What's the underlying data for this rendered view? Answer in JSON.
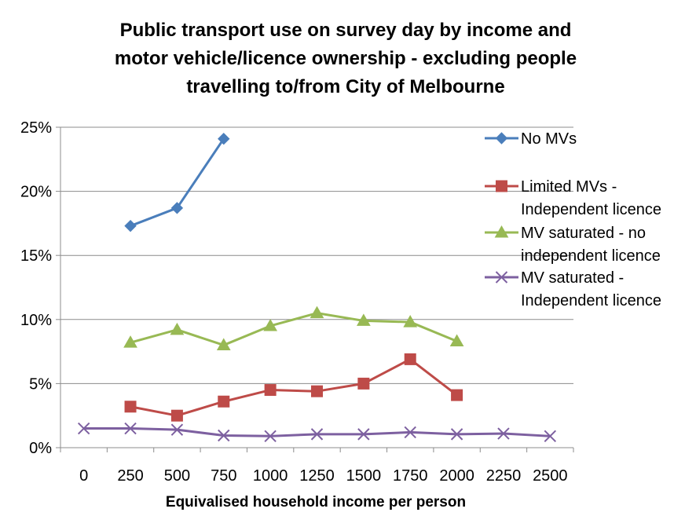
{
  "chart_data": {
    "type": "line",
    "title_lines": [
      "Public transport use on survey day by income and",
      "motor vehicle/licence ownership - excluding people",
      "travelling to/from City of Melbourne"
    ],
    "xlabel": "Equivalised household income per person",
    "ylabel": "",
    "categories": [
      "0",
      "250",
      "500",
      "750",
      "1000",
      "1250",
      "1500",
      "1750",
      "2000",
      "2250",
      "2500"
    ],
    "y_ticks": [
      "0%",
      "5%",
      "10%",
      "15%",
      "20%",
      "25%"
    ],
    "ylim": [
      0,
      25
    ],
    "grid": "horizontal",
    "legend_position": "right",
    "series": [
      {
        "name": "No MVs",
        "legend_lines": [
          "No MVs"
        ],
        "color": "#4a7ebb",
        "marker": "diamond",
        "values": [
          null,
          17.3,
          18.7,
          24.1,
          null,
          null,
          null,
          null,
          null,
          null,
          null
        ]
      },
      {
        "name": "Limited MVs - Independent licence",
        "legend_lines": [
          "Limited MVs -",
          "Independent licence"
        ],
        "color": "#be4b48",
        "marker": "square",
        "values": [
          null,
          3.2,
          2.5,
          3.6,
          4.5,
          4.4,
          5.0,
          6.9,
          4.1,
          null,
          null
        ]
      },
      {
        "name": "MV saturated - no independent licence",
        "legend_lines": [
          "MV saturated - no",
          "independent licence"
        ],
        "color": "#98b954",
        "marker": "triangle",
        "values": [
          null,
          8.2,
          9.2,
          8.0,
          9.5,
          10.5,
          9.9,
          9.8,
          8.3,
          null,
          null
        ]
      },
      {
        "name": "MV saturated - Independent licence",
        "legend_lines": [
          "MV saturated -",
          "Independent licence"
        ],
        "color": "#7d60a0",
        "marker": "x",
        "values": [
          1.5,
          1.5,
          1.4,
          0.95,
          0.9,
          1.05,
          1.05,
          1.2,
          1.05,
          1.1,
          0.9
        ]
      }
    ]
  }
}
